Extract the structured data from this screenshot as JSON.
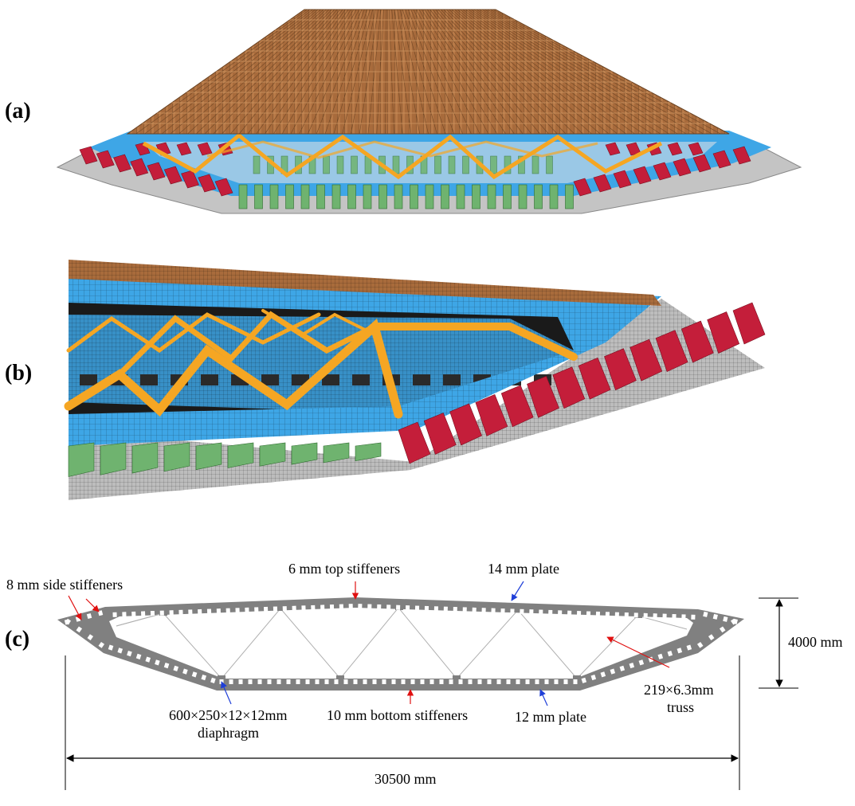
{
  "panels": {
    "a": "(a)",
    "b": "(b)",
    "c": "(c)"
  },
  "colors": {
    "deck": "#a86b3c",
    "web": "#3ea6e6",
    "truss": "#f5a623",
    "side_stiffener": "#c41e3a",
    "bottom_stiffener": "#6fb36f",
    "bottom_plate": "#c4c4c4",
    "section_fill": "#808080",
    "blue_arrow": "#1f3fd8",
    "red_arrow": "#e01010"
  },
  "annotations": {
    "side_stiffeners": "8 mm side stiffeners",
    "top_stiffeners": "6 mm top stiffeners",
    "top_plate": "14 mm plate",
    "height": "4000 mm",
    "diaphragm_line1": "600×250×12×12mm",
    "diaphragm_line2": "diaphragm",
    "bottom_stiffeners": "10 mm bottom stiffeners",
    "bottom_plate": "12 mm plate",
    "truss_line1": "219×6.3mm",
    "truss_line2": "truss",
    "width": "30500 mm"
  }
}
